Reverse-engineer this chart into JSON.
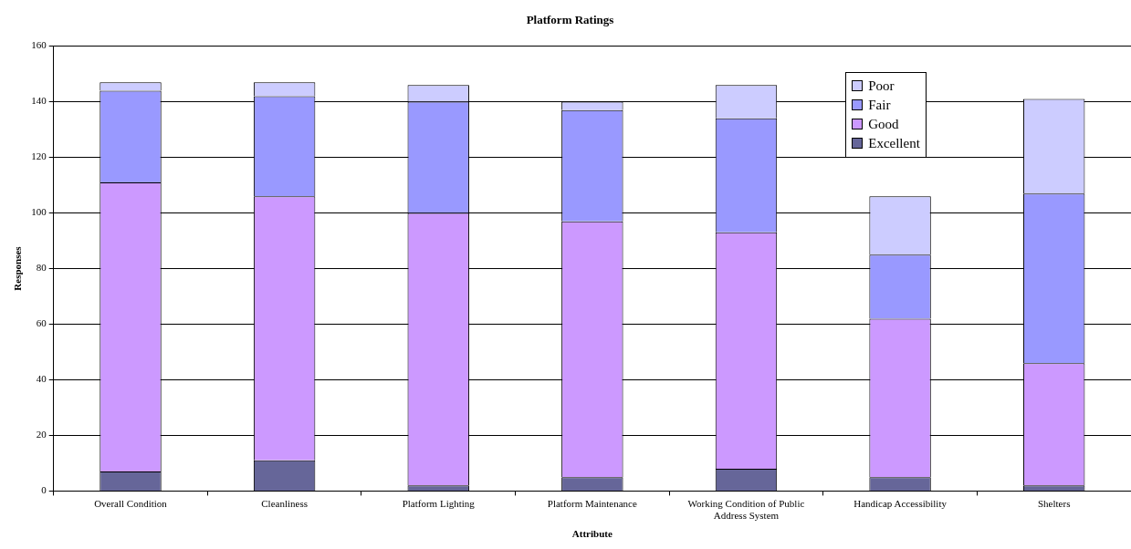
{
  "chart_data": {
    "type": "bar",
    "title": "Platform Ratings",
    "xlabel": "Attribute",
    "ylabel": "Responses",
    "categories": [
      "Overall Condition",
      "Cleanliness",
      "Platform Lighting",
      "Platform Maintenance",
      "Working Condition of Public Address System",
      "Handicap Accessibility",
      "Shelters"
    ],
    "stacked": true,
    "series": [
      {
        "name": "Excellent",
        "color": "#666699",
        "values": [
          7,
          11,
          2,
          5,
          8,
          5,
          2
        ]
      },
      {
        "name": "Good",
        "color": "#cc99ff",
        "values": [
          104,
          95,
          98,
          92,
          85,
          57,
          44
        ]
      },
      {
        "name": "Fair",
        "color": "#9999ff",
        "values": [
          33,
          36,
          40,
          40,
          41,
          23,
          61
        ]
      },
      {
        "name": "Poor",
        "color": "#ccccff",
        "values": [
          3,
          5,
          6,
          3,
          12,
          21,
          34
        ]
      }
    ],
    "ylim": [
      0,
      160
    ],
    "yticks": [
      0,
      20,
      40,
      60,
      80,
      100,
      120,
      140,
      160
    ],
    "grid": "y",
    "legend": "top right"
  }
}
